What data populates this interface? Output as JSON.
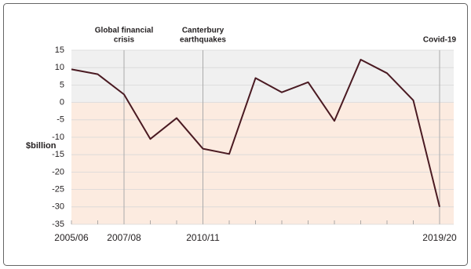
{
  "chart_data": {
    "type": "line",
    "y_label": "$billion",
    "categories": [
      "2005/06",
      null,
      "2007/08",
      null,
      null,
      "2010/11",
      null,
      null,
      null,
      null,
      null,
      null,
      null,
      null,
      "2019/20"
    ],
    "values": [
      9.5,
      8.1,
      2.3,
      -10.5,
      -4.5,
      -13.3,
      -14.8,
      7.0,
      2.9,
      5.8,
      -5.3,
      12.3,
      8.4,
      0.6,
      -30.0
    ],
    "color": "#4a1a22",
    "ylim": [
      -35,
      15
    ],
    "yticks": [
      15,
      10,
      5,
      0,
      -5,
      -10,
      -15,
      -20,
      -25,
      -30,
      -35
    ],
    "grid": true,
    "shade_above": "#f0f0f0",
    "shade_below": "#fcebe0",
    "annotations": [
      {
        "lines": [
          "Global financial",
          "crisis"
        ],
        "at": 2
      },
      {
        "lines": [
          "Canterbury",
          "earthquakes"
        ],
        "at": 5
      },
      {
        "lines": [
          "Covid-19"
        ],
        "at": 14
      }
    ]
  }
}
